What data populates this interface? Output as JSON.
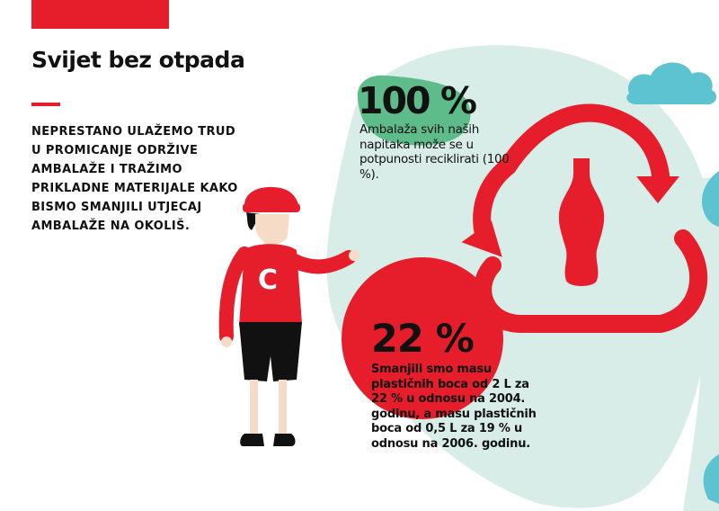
{
  "title": "Svijet bez otpada",
  "intro": "NEPRESTANO ULAŽEMO TRUD U PROMICANJE ODRŽIVE AMBALAŽE I TRAŽIMO PRIKLADNE MATERIJALE KAKO BISMO SMANJILI UTJECAJ AMBALAŽE NA OKOLIŠ.",
  "stats": [
    {
      "value": "100 %",
      "description": "Ambalaža svih naših napitaka može se u potpunosti reciklirati (100 %)."
    },
    {
      "value": "22 %",
      "description": "Smanjili smo masu plastičnih boca od 2 L za 22 % u odnosu na 2004. godinu, a masu plastičnih boca od 0,5 L za 19 % u odnosu na 2006. godinu."
    }
  ],
  "mascot_letter": "C",
  "colors": {
    "brand_red": "#e61d2b",
    "mint": "#d8ece8",
    "cloud_blue": "#5ec3d0",
    "green_blob": "#5ebc8a",
    "dark": "#111111"
  },
  "icons": [
    "recycle-arrows-icon",
    "bottle-icon",
    "cloud-icon"
  ]
}
